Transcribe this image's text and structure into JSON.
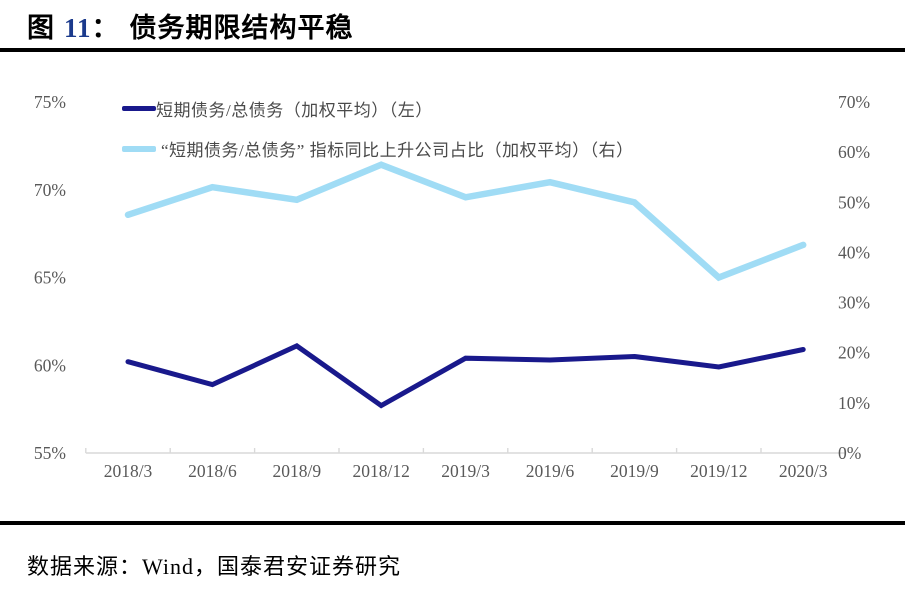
{
  "title": {
    "prefix": "图",
    "number": "11",
    "separator": "：",
    "text": "债务期限结构平稳"
  },
  "footer": {
    "source": "数据来源：Wind，国泰君安证券研究"
  },
  "colors": {
    "navy_line": "#19198C",
    "light_blue_line": "#A0DCF5",
    "axis_text": "#595959",
    "axis_line": "#D9D9D9",
    "figure_number": "#1B3A8C",
    "rule": "#000000"
  },
  "chart_data": {
    "type": "line",
    "title": "图 11：债务期限结构平稳",
    "categories": [
      "2018/3",
      "2018/6",
      "2018/9",
      "2018/12",
      "2019/3",
      "2019/6",
      "2019/9",
      "2019/12",
      "2020/3"
    ],
    "series": [
      {
        "name": "短期债务/总债务（加权平均）（左）",
        "axis": "left",
        "color": "#19198C",
        "stroke_width": 5,
        "values": [
          60.2,
          58.9,
          61.1,
          57.7,
          60.4,
          60.3,
          60.5,
          59.9,
          60.9
        ]
      },
      {
        "name": "“短期债务/总债务” 指标同比上升公司占比（加权平均）（右）",
        "axis": "right",
        "color": "#A0DCF5",
        "stroke_width": 6.5,
        "values": [
          47.5,
          53,
          50.5,
          57.5,
          51,
          54,
          50,
          35,
          41.5
        ]
      }
    ],
    "left_axis": {
      "min": 55,
      "max": 75,
      "tick_step": 5,
      "tick_labels": [
        "55%",
        "60%",
        "65%",
        "70%",
        "75%"
      ]
    },
    "right_axis": {
      "min": 0,
      "max": 70,
      "tick_step": 10,
      "tick_labels": [
        "0%",
        "10%",
        "20%",
        "30%",
        "40%",
        "50%",
        "60%",
        "70%"
      ]
    },
    "xlabel": "",
    "ylabel": "",
    "grid": false,
    "legend_position": "top-left"
  }
}
